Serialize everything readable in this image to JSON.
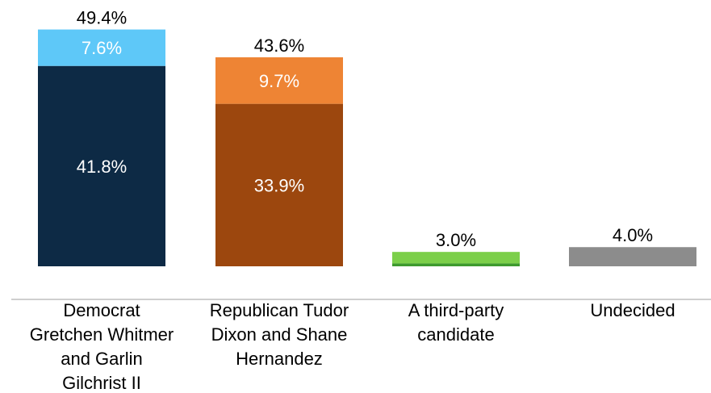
{
  "chart_data": {
    "type": "bar",
    "stacked": true,
    "title": "",
    "xlabel": "",
    "ylabel": "",
    "ylim": [
      0,
      50
    ],
    "grid": false,
    "legend": "none",
    "categories": [
      {
        "lines": [
          "Democrat",
          "Gretchen Whitmer",
          "and Garlin",
          "Gilchrist II"
        ]
      },
      {
        "lines": [
          "Republican Tudor",
          "Dixon and Shane",
          "Hernandez"
        ]
      },
      {
        "lines": [
          "A third-party",
          "candidate"
        ]
      },
      {
        "lines": [
          "Undecided"
        ]
      }
    ],
    "bars": [
      {
        "total": 49.4,
        "total_label": "49.4%",
        "segments": [
          {
            "value": 41.8,
            "label": "41.8%",
            "color": "#0d2a45"
          },
          {
            "value": 7.6,
            "label": "7.6%",
            "color": "#5ec8f8"
          }
        ]
      },
      {
        "total": 43.6,
        "total_label": "43.6%",
        "segments": [
          {
            "value": 33.9,
            "label": "33.9%",
            "color": "#9c470e"
          },
          {
            "value": 9.7,
            "label": "9.7%",
            "color": "#ee8434"
          }
        ]
      },
      {
        "total": 3.0,
        "total_label": "3.0%",
        "segments": [
          {
            "value": 0.6,
            "label": "",
            "color": "#3e9a2e"
          },
          {
            "value": 2.4,
            "label": "",
            "color": "#7ccf4a"
          }
        ]
      },
      {
        "total": 4.0,
        "total_label": "4.0%",
        "segments": [
          {
            "value": 4.0,
            "label": "",
            "color": "#8c8c8c"
          }
        ]
      }
    ]
  }
}
